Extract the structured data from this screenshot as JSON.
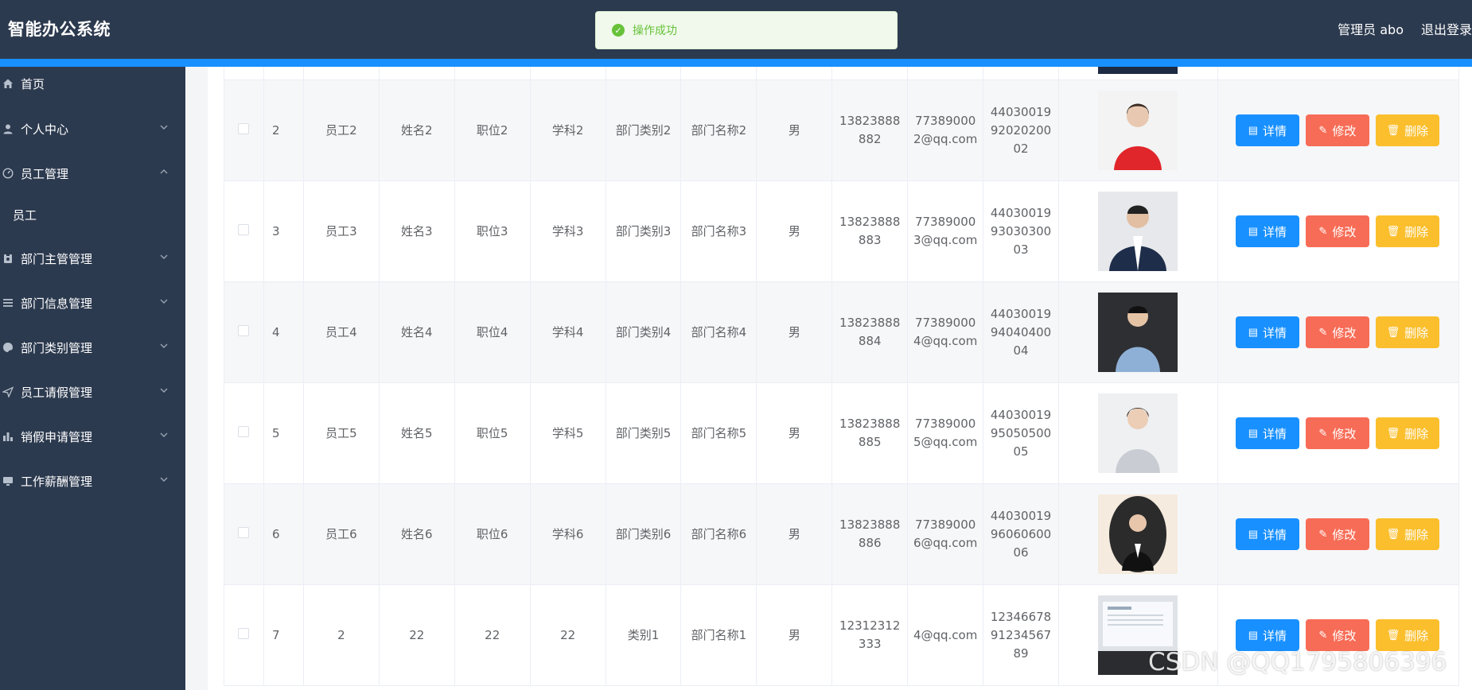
{
  "header": {
    "title": "智能办公系统",
    "user_label": "管理员 abo",
    "logout_label": "退出登录"
  },
  "toast": {
    "message": "操作成功"
  },
  "sidebar": {
    "items": [
      {
        "label": "首页",
        "icon": "home-icon"
      },
      {
        "label": "个人中心",
        "icon": "user-icon"
      },
      {
        "label": "员工管理",
        "icon": "dashboard-icon"
      },
      {
        "label": "员工",
        "icon": ""
      },
      {
        "label": "部门主管管理",
        "icon": "badge-icon"
      },
      {
        "label": "部门信息管理",
        "icon": "list-icon"
      },
      {
        "label": "部门类别管理",
        "icon": "palette-icon"
      },
      {
        "label": "员工请假管理",
        "icon": "send-icon"
      },
      {
        "label": "销假申请管理",
        "icon": "bar-chart-icon"
      },
      {
        "label": "工作薪酬管理",
        "icon": "monitor-icon"
      }
    ]
  },
  "buttons": {
    "detail": "详情",
    "edit": "修改",
    "delete": "删除"
  },
  "rows": [
    {
      "index": "2",
      "emp_no": "员工2",
      "name": "姓名2",
      "position": "职位2",
      "subject": "学科2",
      "dept_type": "部门类别2",
      "dept_name": "部门名称2",
      "gender": "男",
      "phone": "13823888882",
      "email": "773890002@qq.com",
      "id_card": "440300199202020002"
    },
    {
      "index": "3",
      "emp_no": "员工3",
      "name": "姓名3",
      "position": "职位3",
      "subject": "学科3",
      "dept_type": "部门类别3",
      "dept_name": "部门名称3",
      "gender": "男",
      "phone": "13823888883",
      "email": "773890003@qq.com",
      "id_card": "440300199303030003"
    },
    {
      "index": "4",
      "emp_no": "员工4",
      "name": "姓名4",
      "position": "职位4",
      "subject": "学科4",
      "dept_type": "部门类别4",
      "dept_name": "部门名称4",
      "gender": "男",
      "phone": "13823888884",
      "email": "773890004@qq.com",
      "id_card": "440300199404040004"
    },
    {
      "index": "5",
      "emp_no": "员工5",
      "name": "姓名5",
      "position": "职位5",
      "subject": "学科5",
      "dept_type": "部门类别5",
      "dept_name": "部门名称5",
      "gender": "男",
      "phone": "13823888885",
      "email": "773890005@qq.com",
      "id_card": "440300199505050005"
    },
    {
      "index": "6",
      "emp_no": "员工6",
      "name": "姓名6",
      "position": "职位6",
      "subject": "学科6",
      "dept_type": "部门类别6",
      "dept_name": "部门名称6",
      "gender": "男",
      "phone": "13823888886",
      "email": "773890006@qq.com",
      "id_card": "440300199606060006"
    },
    {
      "index": "7",
      "emp_no": "2",
      "name": "22",
      "position": "22",
      "subject": "22",
      "dept_type": "类别1",
      "dept_name": "部门名称1",
      "gender": "男",
      "phone": "12312312333",
      "email": "4@qq.com",
      "id_card": "123466789123456789"
    }
  ],
  "watermark": "CSDN @QQ1795806396"
}
